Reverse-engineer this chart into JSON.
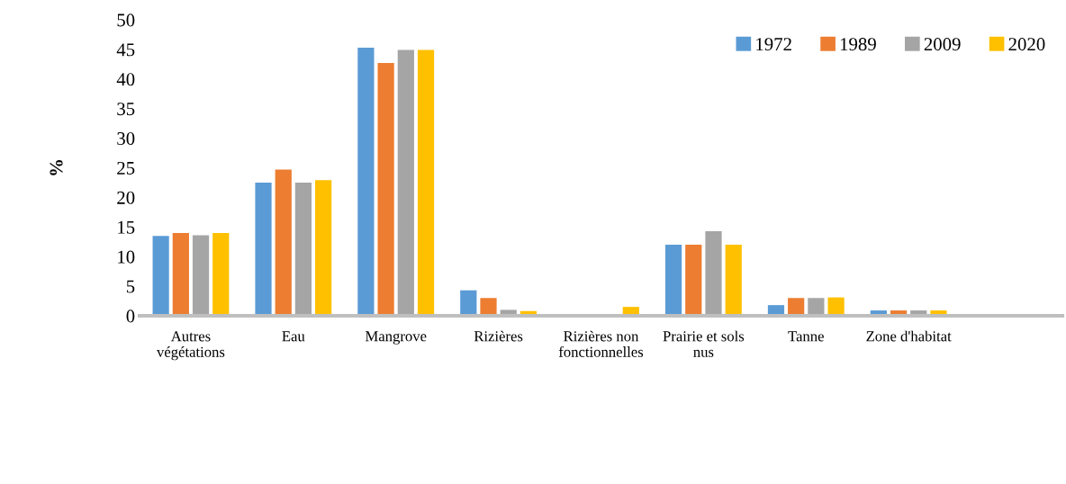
{
  "chart_data": {
    "type": "bar",
    "ylabel": "%",
    "categories": [
      "Autres\nvégétations",
      "Eau",
      "Mangrove",
      "Rizières",
      "Rizières non\nfonctionnelles",
      "Prairie et sols\nnus",
      "Tanne",
      "Zone d'habitat",
      null
    ],
    "series": [
      {
        "name": "1972",
        "color": "#5b9bd5",
        "values": [
          13.5,
          22.5,
          45.3,
          4.3,
          null,
          12.0,
          1.8,
          0.9,
          null
        ]
      },
      {
        "name": "1989",
        "color": "#ed7d31",
        "values": [
          14.0,
          24.7,
          42.7,
          3.0,
          null,
          12.0,
          3.0,
          0.9,
          null
        ]
      },
      {
        "name": "2009",
        "color": "#a5a5a5",
        "values": [
          13.6,
          22.5,
          44.9,
          1.0,
          null,
          14.3,
          3.0,
          0.9,
          null
        ]
      },
      {
        "name": "2020",
        "color": "#ffc000",
        "values": [
          14.0,
          22.9,
          44.9,
          0.8,
          1.5,
          12.0,
          3.1,
          0.9,
          null
        ]
      }
    ],
    "ylim": [
      0,
      50
    ],
    "yticks": [
      0,
      5,
      10,
      15,
      20,
      25,
      30,
      35,
      40,
      45,
      50
    ],
    "grid": false,
    "legend": "top right"
  }
}
